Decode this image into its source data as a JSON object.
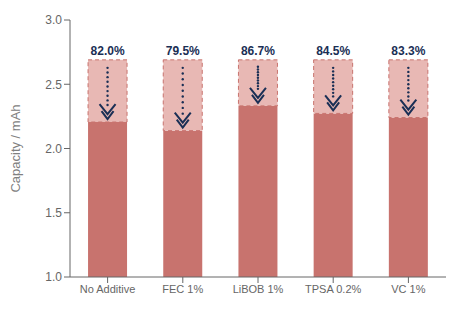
{
  "chart_data": {
    "type": "bar",
    "categories": [
      "No Additive",
      "FEC 1%",
      "LiBOB 1%",
      "TPSA 0.2%",
      "VC 1%"
    ],
    "series": [
      {
        "color": "#c8736e",
        "values": [
          2.206,
          2.139,
          2.332,
          2.273,
          2.241
        ]
      },
      {
        "color": "#e8b8b4",
        "line_style": "dashed",
        "values": [
          2.69,
          2.69,
          2.69,
          2.69,
          2.69
        ]
      }
    ],
    "annotations": [
      {
        "text": "82.0%",
        "color": "#1a2f55"
      },
      {
        "text": "79.5%",
        "color": "#1a2f55"
      },
      {
        "text": "86.7%",
        "color": "#1a2f55"
      },
      {
        "text": "84.5%",
        "color": "#1a2f55"
      },
      {
        "text": "83.3%",
        "color": "#1a2f55"
      }
    ],
    "ylabel": "Capacity / mAh",
    "ylim": [
      1.0,
      3.0
    ],
    "yticks": [
      {
        "value": 1.0,
        "label": "1.0"
      },
      1.5,
      {
        "value": 2.0,
        "label": "2.0"
      },
      2.5,
      {
        "value": 3.0,
        "label": "3.0"
      }
    ],
    "grid": false
  }
}
